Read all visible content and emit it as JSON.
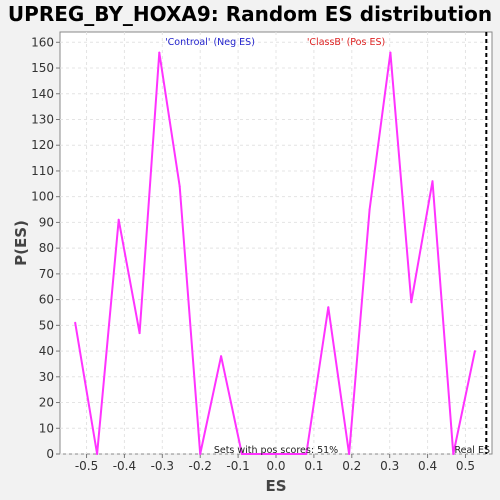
{
  "chart_data": {
    "type": "line",
    "title": "UPREG_BY_HOXA9: Random ES distribution",
    "xlabel": "ES",
    "ylabel": "P(ES)",
    "xlim": [
      -0.57,
      0.57
    ],
    "ylim": [
      0,
      164
    ],
    "x_ticks": [
      -0.5,
      -0.4,
      -0.3,
      -0.2,
      -0.1,
      0.0,
      0.1,
      0.2,
      0.3,
      0.4,
      0.5
    ],
    "x_tick_labels": [
      "-0.5",
      "-0.4",
      "-0.3",
      "-0.2",
      "-0.1",
      "0.0",
      "0.1",
      "0.2",
      "0.3",
      "0.4",
      "0.5"
    ],
    "y_ticks": [
      0,
      10,
      20,
      30,
      40,
      50,
      60,
      70,
      80,
      90,
      100,
      110,
      120,
      130,
      140,
      150,
      160
    ],
    "grid": true,
    "series": [
      {
        "color": "#ff33ff",
        "x": [
          -0.53,
          -0.472,
          -0.415,
          -0.36,
          -0.308,
          -0.254,
          -0.2,
          -0.145,
          -0.09,
          0.08,
          0.138,
          0.193,
          0.247,
          0.302,
          0.357,
          0.413,
          0.468,
          0.525
        ],
        "y": [
          51,
          0,
          91,
          47,
          156,
          104,
          0,
          38,
          0,
          0,
          57,
          0,
          95,
          156,
          59,
          106,
          0,
          40
        ]
      }
    ],
    "real_es": 0.555,
    "real_es_color": "#000000",
    "annotations": {
      "neg_label": "'Controal' (Neg ES)",
      "neg_color": "#2222cc",
      "pos_label": "'ClassB' (Pos ES)",
      "pos_color": "#dd2222",
      "pos_scores": "Sets with pos scores: 51%",
      "real_es_label": "Real ES"
    }
  }
}
